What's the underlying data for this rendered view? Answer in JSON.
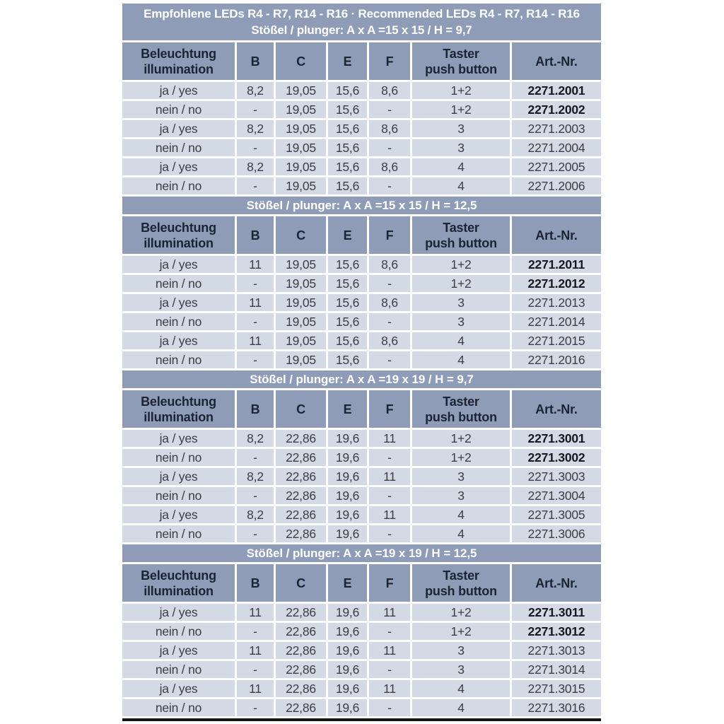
{
  "colors": {
    "band_bg": "#8e9cb8",
    "band_text": "#ffffff",
    "header_text": "#1c2433",
    "row_bg": "#d3d9e5",
    "row_text": "#3a3f46",
    "art_bold_text": "#15191f",
    "separator": "#ffffff",
    "bottom_border": "#141414"
  },
  "table": {
    "title": "Empfohlene LEDs R4 - R7, R14 - R16 · Recommended LEDs R4 - R7, R14 - R16",
    "column_keys": [
      "illumination",
      "b",
      "c",
      "e",
      "f",
      "taster",
      "art-nr"
    ],
    "columns": [
      {
        "lines": [
          "Beleuchtung",
          "illumination"
        ]
      },
      {
        "lines": [
          "B"
        ]
      },
      {
        "lines": [
          "C"
        ]
      },
      {
        "lines": [
          "E"
        ]
      },
      {
        "lines": [
          "F"
        ]
      },
      {
        "lines": [
          "Taster",
          "push button"
        ]
      },
      {
        "lines": [
          "Art.-Nr."
        ]
      }
    ],
    "sections": [
      {
        "subtitle": "Stößel / plunger: A x A =15 x 15 / H = 9,7",
        "rows": [
          {
            "cells": [
              "ja / yes",
              "8,2",
              "19,05",
              "15,6",
              "8,6",
              "1+2",
              "2271.2001"
            ],
            "art_bold": true
          },
          {
            "cells": [
              "nein / no",
              "-",
              "19,05",
              "15,6",
              "-",
              "1+2",
              "2271.2002"
            ],
            "art_bold": true
          },
          {
            "cells": [
              "ja / yes",
              "8,2",
              "19,05",
              "15,6",
              "8,6",
              "3",
              "2271.2003"
            ],
            "art_bold": false
          },
          {
            "cells": [
              "nein / no",
              "-",
              "19,05",
              "15,6",
              "-",
              "3",
              "2271.2004"
            ],
            "art_bold": false
          },
          {
            "cells": [
              "ja / yes",
              "8,2",
              "19,05",
              "15,6",
              "8,6",
              "4",
              "2271.2005"
            ],
            "art_bold": false
          },
          {
            "cells": [
              "nein / no",
              "-",
              "19,05",
              "15,6",
              "-",
              "4",
              "2271.2006"
            ],
            "art_bold": false
          }
        ]
      },
      {
        "subtitle": "Stößel / plunger: A x A =15 x 15 / H = 12,5",
        "rows": [
          {
            "cells": [
              "ja / yes",
              "11",
              "19,05",
              "15,6",
              "8,6",
              "1+2",
              "2271.2011"
            ],
            "art_bold": true
          },
          {
            "cells": [
              "nein / no",
              "-",
              "19,05",
              "15,6",
              "-",
              "1+2",
              "2271.2012"
            ],
            "art_bold": true
          },
          {
            "cells": [
              "ja / yes",
              "11",
              "19,05",
              "15,6",
              "8,6",
              "3",
              "2271.2013"
            ],
            "art_bold": false
          },
          {
            "cells": [
              "nein / no",
              "-",
              "19,05",
              "15,6",
              "-",
              "3",
              "2271.2014"
            ],
            "art_bold": false
          },
          {
            "cells": [
              "ja / yes",
              "11",
              "19,05",
              "15,6",
              "8,6",
              "4",
              "2271.2015"
            ],
            "art_bold": false
          },
          {
            "cells": [
              "nein / no",
              "-",
              "19,05",
              "15,6",
              "-",
              "4",
              "2271.2016"
            ],
            "art_bold": false
          }
        ]
      },
      {
        "subtitle": "Stößel / plunger: A x A =19 x 19 / H = 9,7",
        "rows": [
          {
            "cells": [
              "ja / yes",
              "8,2",
              "22,86",
              "19,6",
              "11",
              "1+2",
              "2271.3001"
            ],
            "art_bold": true
          },
          {
            "cells": [
              "nein / no",
              "-",
              "22,86",
              "19,6",
              "-",
              "1+2",
              "2271.3002"
            ],
            "art_bold": true
          },
          {
            "cells": [
              "ja / yes",
              "8,2",
              "22,86",
              "19,6",
              "11",
              "3",
              "2271.3003"
            ],
            "art_bold": false
          },
          {
            "cells": [
              "nein / no",
              "-",
              "22,86",
              "19,6",
              "-",
              "3",
              "2271.3004"
            ],
            "art_bold": false
          },
          {
            "cells": [
              "ja / yes",
              "8,2",
              "22,86",
              "19,6",
              "11",
              "4",
              "2271.3005"
            ],
            "art_bold": false
          },
          {
            "cells": [
              "nein / no",
              "-",
              "22,86",
              "19,6",
              "-",
              "4",
              "2271.3006"
            ],
            "art_bold": false
          }
        ]
      },
      {
        "subtitle": "Stößel / plunger: A x A =19 x 19 / H = 12,5",
        "rows": [
          {
            "cells": [
              "ja / yes",
              "11",
              "22,86",
              "19,6",
              "11",
              "1+2",
              "2271.3011"
            ],
            "art_bold": true
          },
          {
            "cells": [
              "nein / no",
              "-",
              "22,86",
              "19,6",
              "-",
              "1+2",
              "2271.3012"
            ],
            "art_bold": true
          },
          {
            "cells": [
              "ja / yes",
              "11",
              "22,86",
              "19,6",
              "11",
              "3",
              "2271.3013"
            ],
            "art_bold": false
          },
          {
            "cells": [
              "nein / no",
              "-",
              "22,86",
              "19,6",
              "-",
              "3",
              "2271.3014"
            ],
            "art_bold": false
          },
          {
            "cells": [
              "ja / yes",
              "11",
              "22,86",
              "19,6",
              "11",
              "4",
              "2271.3015"
            ],
            "art_bold": false
          },
          {
            "cells": [
              "nein / no",
              "-",
              "22,86",
              "19,6",
              "-",
              "4",
              "2271.3016"
            ],
            "art_bold": false
          }
        ]
      }
    ]
  }
}
